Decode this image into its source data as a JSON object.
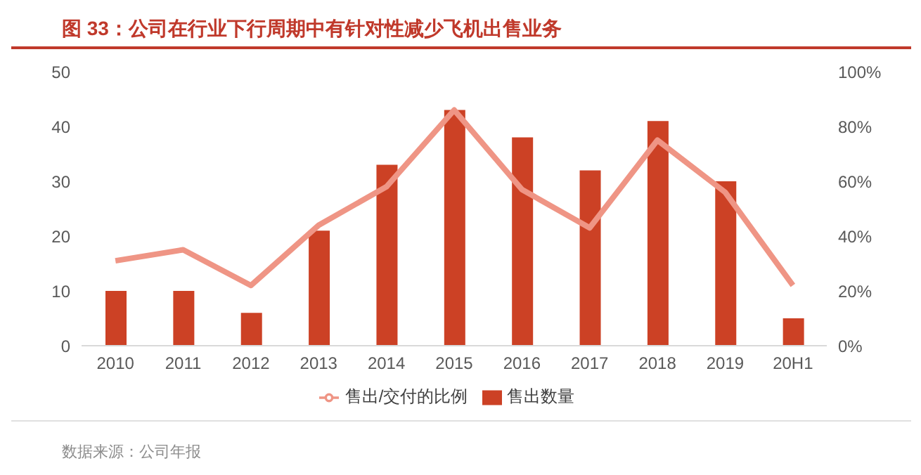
{
  "chart_data": {
    "type": "bar",
    "title": "图 33：公司在行业下行周期中有针对性减少飞机出售业务",
    "categories": [
      "2010",
      "2011",
      "2012",
      "2013",
      "2014",
      "2015",
      "2016",
      "2017",
      "2018",
      "2019",
      "20H1"
    ],
    "series": [
      {
        "name": "售出数量",
        "color": "#cc4125",
        "values": [
          10,
          10,
          6,
          21,
          33,
          43,
          38,
          32,
          41,
          30,
          5
        ]
      },
      {
        "name": "售出/交付的比例",
        "type": "line",
        "axis": "y2",
        "color": "#ef9585",
        "values": [
          31,
          35,
          22,
          44,
          58,
          86,
          57,
          43,
          75,
          56,
          22
        ]
      }
    ],
    "ylim": [
      0,
      50
    ],
    "yticks": [
      0,
      10,
      20,
      30,
      40,
      50
    ],
    "y2lim": [
      0,
      100
    ],
    "y2ticks": [
      {
        "value": 0,
        "label": "0%"
      },
      {
        "value": 20,
        "label": "20%"
      },
      {
        "value": 40,
        "label": "40%"
      },
      {
        "value": 60,
        "label": "60%"
      },
      {
        "value": 80,
        "label": "80%"
      },
      {
        "value": 100,
        "label": "100%"
      }
    ],
    "legend": "bottom",
    "grid": false,
    "marker": "none",
    "annotations": [
      "数据来源：公司年报"
    ]
  }
}
